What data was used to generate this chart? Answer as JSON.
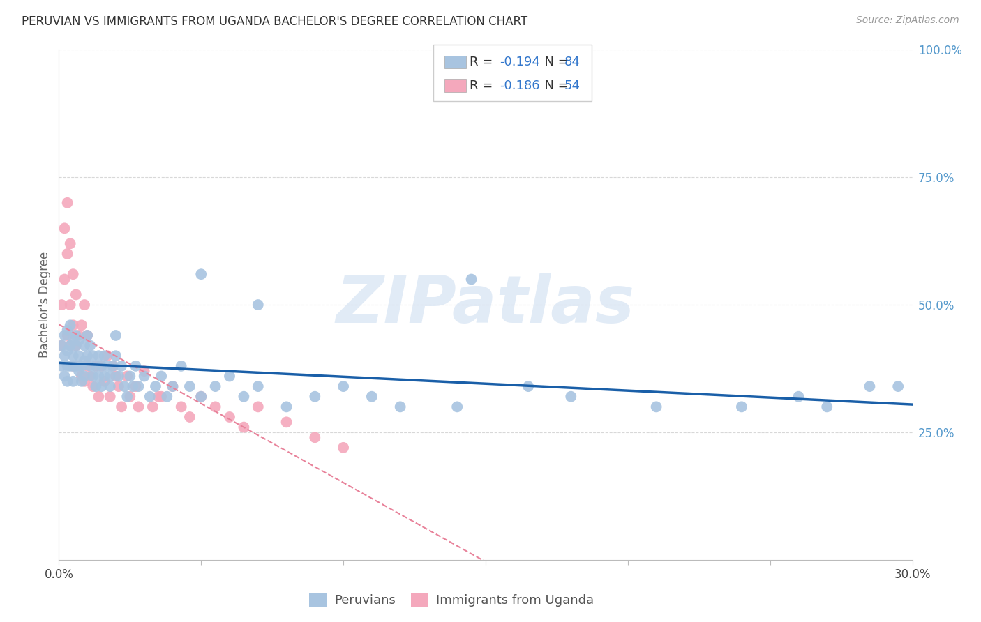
{
  "title": "PERUVIAN VS IMMIGRANTS FROM UGANDA BACHELOR'S DEGREE CORRELATION CHART",
  "source": "Source: ZipAtlas.com",
  "ylabel": "Bachelor's Degree",
  "right_yticks": [
    "100.0%",
    "75.0%",
    "50.0%",
    "25.0%"
  ],
  "right_ytick_vals": [
    1.0,
    0.75,
    0.5,
    0.25
  ],
  "peruvian_color": "#a8c4e0",
  "uganda_color": "#f4a8bc",
  "peruvian_line_color": "#1a5fa8",
  "uganda_line_color": "#e8829a",
  "xlim": [
    0.0,
    0.3
  ],
  "ylim": [
    0.0,
    1.0
  ],
  "watermark": "ZIPatlas",
  "background_color": "#ffffff",
  "grid_color": "#d8d8d8",
  "peruvian_x": [
    0.001,
    0.001,
    0.002,
    0.002,
    0.002,
    0.003,
    0.003,
    0.003,
    0.003,
    0.004,
    0.004,
    0.004,
    0.005,
    0.005,
    0.005,
    0.005,
    0.006,
    0.006,
    0.006,
    0.007,
    0.007,
    0.007,
    0.008,
    0.008,
    0.009,
    0.009,
    0.009,
    0.01,
    0.01,
    0.011,
    0.011,
    0.012,
    0.012,
    0.013,
    0.013,
    0.014,
    0.014,
    0.015,
    0.015,
    0.016,
    0.016,
    0.017,
    0.018,
    0.018,
    0.019,
    0.02,
    0.02,
    0.021,
    0.022,
    0.023,
    0.024,
    0.025,
    0.026,
    0.027,
    0.028,
    0.03,
    0.032,
    0.034,
    0.036,
    0.038,
    0.04,
    0.043,
    0.046,
    0.05,
    0.055,
    0.06,
    0.065,
    0.07,
    0.08,
    0.09,
    0.1,
    0.11,
    0.12,
    0.14,
    0.165,
    0.18,
    0.21,
    0.24,
    0.26,
    0.27,
    0.285,
    0.295,
    0.145,
    0.07,
    0.05
  ],
  "peruvian_y": [
    0.42,
    0.38,
    0.44,
    0.4,
    0.36,
    0.45,
    0.41,
    0.38,
    0.35,
    0.42,
    0.38,
    0.46,
    0.4,
    0.43,
    0.38,
    0.35,
    0.42,
    0.38,
    0.44,
    0.4,
    0.37,
    0.43,
    0.38,
    0.35,
    0.42,
    0.39,
    0.36,
    0.4,
    0.44,
    0.38,
    0.42,
    0.36,
    0.4,
    0.38,
    0.34,
    0.36,
    0.4,
    0.34,
    0.38,
    0.36,
    0.4,
    0.38,
    0.34,
    0.36,
    0.38,
    0.4,
    0.44,
    0.36,
    0.38,
    0.34,
    0.32,
    0.36,
    0.34,
    0.38,
    0.34,
    0.36,
    0.32,
    0.34,
    0.36,
    0.32,
    0.34,
    0.38,
    0.34,
    0.32,
    0.34,
    0.36,
    0.32,
    0.34,
    0.3,
    0.32,
    0.34,
    0.32,
    0.3,
    0.3,
    0.34,
    0.32,
    0.3,
    0.3,
    0.32,
    0.3,
    0.34,
    0.34,
    0.55,
    0.5,
    0.56
  ],
  "uganda_x": [
    0.001,
    0.001,
    0.002,
    0.002,
    0.003,
    0.003,
    0.003,
    0.004,
    0.004,
    0.004,
    0.005,
    0.005,
    0.005,
    0.006,
    0.006,
    0.007,
    0.007,
    0.008,
    0.008,
    0.009,
    0.009,
    0.01,
    0.01,
    0.011,
    0.012,
    0.013,
    0.014,
    0.015,
    0.016,
    0.017,
    0.018,
    0.019,
    0.02,
    0.021,
    0.022,
    0.024,
    0.025,
    0.027,
    0.03,
    0.033,
    0.036,
    0.04,
    0.043,
    0.046,
    0.05,
    0.055,
    0.06,
    0.065,
    0.07,
    0.08,
    0.09,
    0.1,
    0.035,
    0.028
  ],
  "uganda_y": [
    0.42,
    0.5,
    0.55,
    0.65,
    0.44,
    0.6,
    0.7,
    0.42,
    0.5,
    0.62,
    0.38,
    0.46,
    0.56,
    0.42,
    0.52,
    0.38,
    0.44,
    0.36,
    0.46,
    0.35,
    0.5,
    0.38,
    0.44,
    0.36,
    0.34,
    0.38,
    0.32,
    0.38,
    0.35,
    0.4,
    0.32,
    0.38,
    0.36,
    0.34,
    0.3,
    0.36,
    0.32,
    0.34,
    0.37,
    0.3,
    0.32,
    0.34,
    0.3,
    0.28,
    0.32,
    0.3,
    0.28,
    0.26,
    0.3,
    0.27,
    0.24,
    0.22,
    0.32,
    0.3
  ]
}
